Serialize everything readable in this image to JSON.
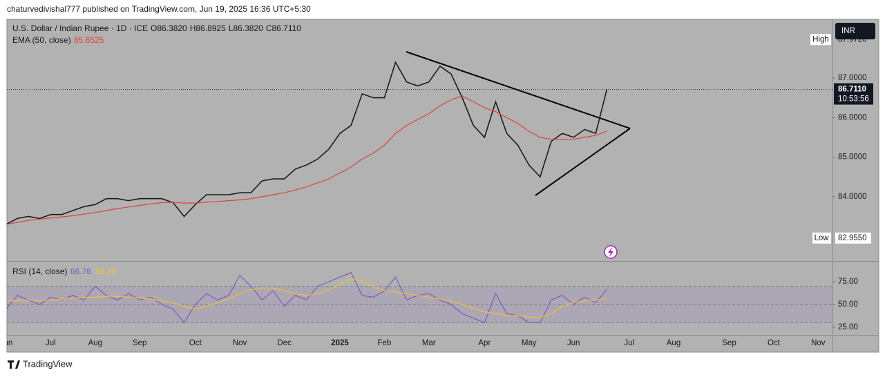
{
  "header": "chaturvedivishal777 published on TradingView.com, Jun 19, 2025 16:36 UTC+5:30",
  "footer": "TradingView",
  "chart_data": [
    {
      "type": "line",
      "ohlc": [
        "O86.3820",
        "H86.8925",
        "L86.3820",
        "C86.7110"
      ],
      "currency": "INR",
      "categories": [
        "Jun",
        null,
        null,
        null,
        "Jul",
        null,
        null,
        null,
        "Aug",
        null,
        null,
        null,
        "Sep",
        null,
        null,
        null,
        null,
        "Oct",
        null,
        null,
        null,
        "Nov",
        null,
        null,
        null,
        "Dec",
        null,
        null,
        null,
        null,
        "2025",
        null,
        null,
        null,
        "Feb",
        null,
        null,
        null,
        "Mar",
        null,
        null,
        null,
        null,
        "Apr",
        null,
        null,
        null,
        "May",
        null,
        null,
        null,
        "Jun",
        null,
        null,
        null,
        null,
        "Jul",
        null,
        null,
        null,
        "Aug",
        null,
        null,
        null,
        null,
        "Sep",
        null,
        null,
        null,
        "Oct",
        null,
        null,
        null,
        "Nov",
        null
      ],
      "series": [
        {
          "name": "U.S. Dollar / Indian Rupee · 1D · ICE",
          "color": "#1b1b1b",
          "values": [
            83.3,
            83.45,
            83.5,
            83.45,
            83.55,
            83.55,
            83.65,
            83.75,
            83.8,
            83.95,
            83.95,
            83.9,
            83.95,
            83.95,
            83.95,
            83.85,
            83.5,
            83.8,
            84.05,
            84.05,
            84.05,
            84.1,
            84.1,
            84.4,
            84.45,
            84.45,
            84.7,
            84.8,
            84.95,
            85.2,
            85.6,
            85.8,
            86.6,
            86.5,
            86.5,
            87.4,
            86.9,
            86.8,
            86.9,
            87.3,
            87.1,
            86.5,
            85.8,
            85.5,
            86.4,
            85.6,
            85.3,
            84.8,
            84.5,
            85.4,
            85.6,
            85.5,
            85.7,
            85.6,
            86.711,
            null,
            null,
            null,
            null,
            null,
            null,
            null,
            null,
            null,
            null,
            null,
            null,
            null,
            null,
            null,
            null,
            null,
            null,
            null,
            null
          ]
        },
        {
          "name": "EMA (50, close)",
          "color": "#e0403f",
          "values": [
            83.3,
            83.35,
            83.4,
            83.43,
            83.46,
            83.49,
            83.52,
            83.56,
            83.6,
            83.65,
            83.7,
            83.74,
            83.78,
            83.82,
            83.85,
            83.86,
            83.84,
            83.84,
            83.86,
            83.88,
            83.9,
            83.92,
            83.95,
            84.0,
            84.05,
            84.1,
            84.17,
            84.25,
            84.35,
            84.45,
            84.6,
            84.75,
            84.95,
            85.1,
            85.3,
            85.6,
            85.8,
            85.95,
            86.1,
            86.3,
            86.45,
            86.55,
            86.4,
            86.25,
            86.15,
            86.0,
            85.85,
            85.65,
            85.5,
            85.45,
            85.45,
            85.45,
            85.5,
            85.55,
            85.6525,
            null,
            null,
            null,
            null,
            null,
            null,
            null,
            null,
            null,
            null,
            null,
            null,
            null,
            null,
            null,
            null,
            null,
            null,
            null,
            null
          ]
        }
      ],
      "last_price": {
        "value": 86.711,
        "label": "86.7110"
      },
      "countdown": "10:53:56",
      "high": {
        "name": "High",
        "value": 87.972,
        "label": "87.9720"
      },
      "low": {
        "name": "Low",
        "value": 82.955,
        "label": "82.9550"
      },
      "ylim": [
        82.375,
        88.483
      ],
      "yticks": [
        {
          "value": 87,
          "label": "87.0000"
        },
        {
          "value": 86,
          "label": "86.0000"
        },
        {
          "value": 85,
          "label": "85.0000"
        },
        {
          "value": 84,
          "label": "84.0000"
        }
      ],
      "grid": false
    },
    {
      "type": "line",
      "series": [
        {
          "name": "RSI (14, close)",
          "color": "#7e57c2",
          "values": [
            45,
            60,
            55,
            50,
            58,
            55,
            60,
            55,
            70,
            60,
            55,
            62,
            55,
            58,
            50,
            45,
            30,
            50,
            62,
            55,
            60,
            82,
            70,
            55,
            65,
            48,
            60,
            55,
            70,
            75,
            80,
            85,
            60,
            58,
            65,
            80,
            55,
            60,
            62,
            55,
            50,
            40,
            35,
            30,
            62,
            40,
            38,
            30,
            30,
            55,
            60,
            50,
            58,
            52,
            66.76,
            null,
            null,
            null,
            null,
            null,
            null,
            null,
            null,
            null,
            null,
            null,
            null,
            null,
            null,
            null,
            null,
            null,
            null,
            null,
            null
          ]
        },
        {
          "color": "#f2c230",
          "values": [
            54,
            54,
            55,
            54,
            55,
            56,
            57,
            58,
            58,
            59,
            59,
            58,
            57,
            56,
            54,
            52,
            48,
            45,
            48,
            52,
            56,
            62,
            66,
            68,
            68,
            65,
            62,
            60,
            62,
            66,
            72,
            78,
            76,
            70,
            65,
            64,
            62,
            60,
            58,
            56,
            54,
            50,
            46,
            42,
            40,
            38,
            38,
            36,
            36,
            40,
            48,
            52,
            54,
            55,
            56.29,
            null,
            null,
            null,
            null,
            null,
            null,
            null,
            null,
            null,
            null,
            null,
            null,
            null,
            null,
            null,
            null,
            null,
            null,
            null,
            null
          ]
        }
      ],
      "band": [
        30,
        70
      ],
      "hlines": [
        70,
        50,
        30
      ],
      "ylim": [
        16.7,
        96.2
      ],
      "yticks": [
        {
          "value": 75,
          "label": "75.00"
        },
        {
          "value": 50,
          "label": "50.00"
        },
        {
          "value": 25,
          "label": "25.00"
        }
      ],
      "grid": false
    }
  ]
}
